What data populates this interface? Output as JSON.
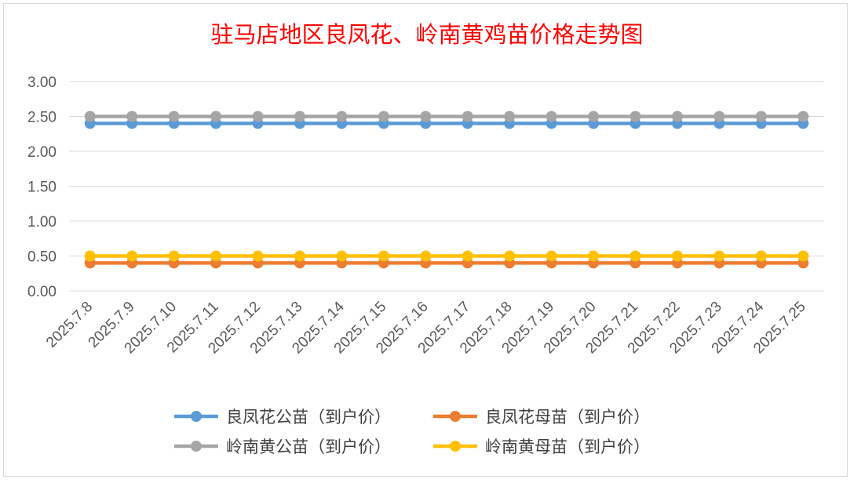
{
  "chart_data": {
    "type": "line",
    "title": "驻马店地区良凤花、岭南黄鸡苗价格走势图",
    "xlabel": "",
    "ylabel": "",
    "categories": [
      "2025.7.8",
      "2025.7.9",
      "2025.7.10",
      "2025.7.11",
      "2025.7.12",
      "2025.7.13",
      "2025.7.14",
      "2025.7.15",
      "2025.7.16",
      "2025.7.17",
      "2025.7.18",
      "2025.7.19",
      "2025.7.20",
      "2025.7.21",
      "2025.7.22",
      "2025.7.23",
      "2025.7.24",
      "2025.7.25"
    ],
    "ylim": [
      0,
      3
    ],
    "yticks": [
      "0.00",
      "0.50",
      "1.00",
      "1.50",
      "2.00",
      "2.50",
      "3.00"
    ],
    "grid": true,
    "legend_position": "bottom",
    "series": [
      {
        "name": "良凤花公苗（到户价）",
        "color": "#5b9bd5",
        "values": [
          2.4,
          2.4,
          2.4,
          2.4,
          2.4,
          2.4,
          2.4,
          2.4,
          2.4,
          2.4,
          2.4,
          2.4,
          2.4,
          2.4,
          2.4,
          2.4,
          2.4,
          2.4
        ]
      },
      {
        "name": "良凤花母苗（到户价）",
        "color": "#ed7d31",
        "values": [
          0.4,
          0.4,
          0.4,
          0.4,
          0.4,
          0.4,
          0.4,
          0.4,
          0.4,
          0.4,
          0.4,
          0.4,
          0.4,
          0.4,
          0.4,
          0.4,
          0.4,
          0.4
        ]
      },
      {
        "name": "岭南黄公苗（到户价）",
        "color": "#a5a5a5",
        "values": [
          2.5,
          2.5,
          2.5,
          2.5,
          2.5,
          2.5,
          2.5,
          2.5,
          2.5,
          2.5,
          2.5,
          2.5,
          2.5,
          2.5,
          2.5,
          2.5,
          2.5,
          2.5
        ]
      },
      {
        "name": "岭南黄母苗（到户价）",
        "color": "#ffc000",
        "values": [
          0.5,
          0.5,
          0.5,
          0.5,
          0.5,
          0.5,
          0.5,
          0.5,
          0.5,
          0.5,
          0.5,
          0.5,
          0.5,
          0.5,
          0.5,
          0.5,
          0.5,
          0.5
        ]
      }
    ],
    "title_color": "#ff0000"
  }
}
